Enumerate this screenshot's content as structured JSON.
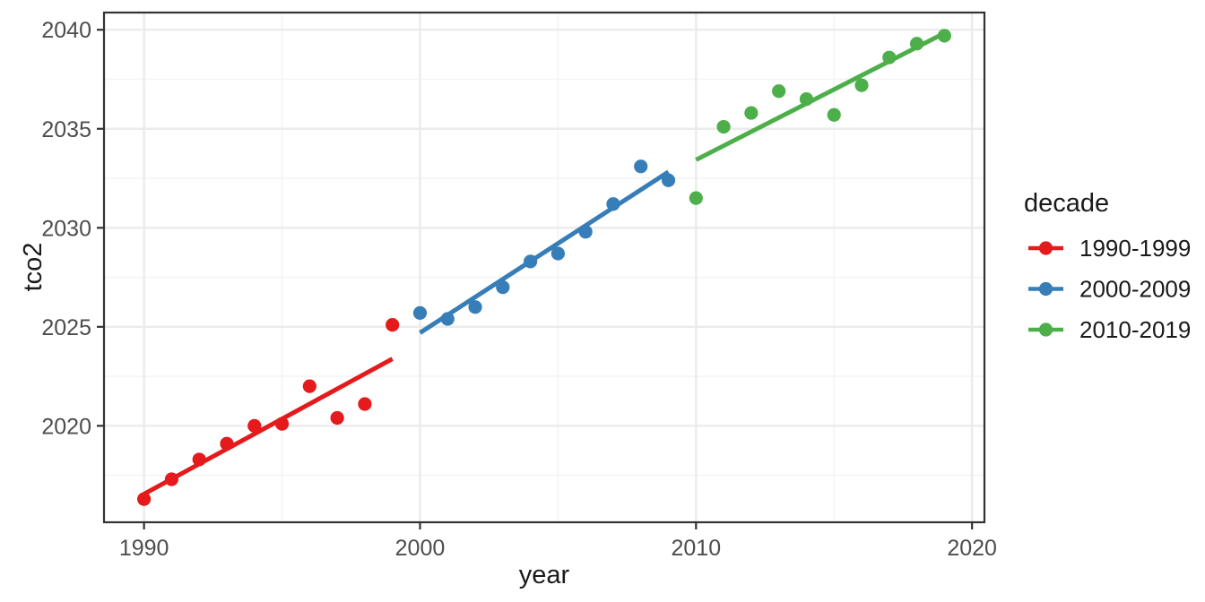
{
  "figure": {
    "background": "#FFFFFF",
    "panel_fill": "#FFFFFF",
    "panel_border_color": "#333333",
    "grid_major_color": "#EBEBEB",
    "grid_minor_color": "#F4F4F4",
    "tick_color": "#333333",
    "tick_label_color": "#4D4D4D",
    "axis_title_color": "#1A1A1A"
  },
  "chart_data": {
    "type": "scatter",
    "title": "",
    "xlabel": "year",
    "ylabel": "tco2",
    "xlim": [
      1988.55,
      2020.45
    ],
    "ylim": [
      2015.13,
      2040.87
    ],
    "x_major_ticks": [
      1990,
      2000,
      2010,
      2020
    ],
    "x_minor_ticks": [
      1995,
      2005,
      2015
    ],
    "y_major_ticks": [
      2020,
      2025,
      2030,
      2035,
      2040
    ],
    "y_minor_ticks": [
      2017.5,
      2022.5,
      2027.5,
      2032.5,
      2037.5
    ],
    "grid": true,
    "legend": {
      "title": "decade",
      "position": "right"
    },
    "series": [
      {
        "name": "1990-1999",
        "color": "#E41A1C",
        "trend": "linear",
        "x": [
          1990,
          1991,
          1992,
          1993,
          1994,
          1995,
          1996,
          1997,
          1998,
          1999
        ],
        "y": [
          2016.3,
          2017.3,
          2018.3,
          2019.1,
          2020.0,
          2020.1,
          2022.0,
          2020.4,
          2021.1,
          2025.1
        ]
      },
      {
        "name": "2000-2009",
        "color": "#377EB8",
        "trend": "linear",
        "x": [
          2000,
          2001,
          2002,
          2003,
          2004,
          2005,
          2006,
          2007,
          2008,
          2009
        ],
        "y": [
          2025.7,
          2025.4,
          2026.0,
          2027.0,
          2028.3,
          2028.7,
          2029.8,
          2031.2,
          2033.1,
          2032.4
        ]
      },
      {
        "name": "2010-2019",
        "color": "#4DAF4A",
        "trend": "linear",
        "x": [
          2010,
          2011,
          2012,
          2013,
          2014,
          2015,
          2016,
          2017,
          2018,
          2019
        ],
        "y": [
          2031.5,
          2035.1,
          2035.8,
          2036.9,
          2036.5,
          2035.7,
          2037.2,
          2038.6,
          2039.3,
          2039.7
        ]
      }
    ]
  }
}
